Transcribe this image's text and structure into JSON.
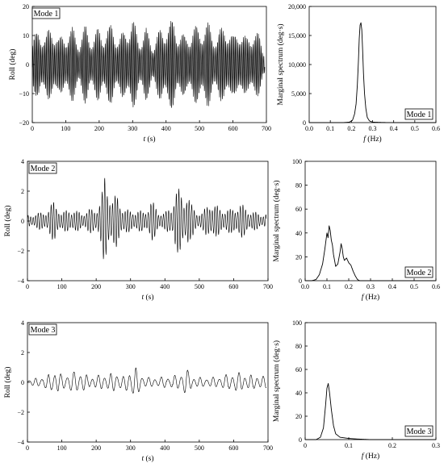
{
  "chart_data": [
    {
      "type": "line",
      "mode_label": "Mode 1",
      "xlabel_var": "t",
      "xlabel_unit": " (s)",
      "ylabel": "Roll (deg)",
      "xlim": [
        0,
        700
      ],
      "ylim": [
        -20,
        20
      ],
      "xticks": [
        0,
        100,
        200,
        300,
        400,
        500,
        600,
        700
      ],
      "yticks": [
        -20,
        -10,
        0,
        10,
        20
      ],
      "yticklabels": [
        "−20",
        "−10",
        "0",
        "10",
        "20"
      ],
      "series": [
        {
          "freq_hz": 0.245,
          "envelope_x": [
            0,
            20,
            40,
            60,
            80,
            100,
            120,
            140,
            160,
            180,
            200,
            220,
            240,
            260,
            280,
            300,
            320,
            340,
            360,
            380,
            400,
            420,
            440,
            460,
            480,
            500,
            520,
            540,
            560,
            580,
            600,
            620,
            640,
            660,
            680,
            690
          ],
          "envelope_y": [
            8,
            14,
            10,
            15,
            9,
            12,
            13,
            9,
            14,
            10,
            13,
            12,
            15,
            9,
            14,
            16,
            10,
            13,
            8,
            12,
            15,
            16,
            12,
            10,
            14,
            13,
            16,
            11,
            12,
            15,
            10,
            14,
            9,
            13,
            10,
            6
          ]
        }
      ]
    },
    {
      "type": "line",
      "mode_label": "Mode 1",
      "xlabel_var": "f",
      "xlabel_unit": " (Hz)",
      "ylabel": "Marginal spectrum (deg·s)",
      "xlim": [
        0,
        0.6
      ],
      "ylim": [
        0,
        20000
      ],
      "xticks": [
        0.0,
        0.1,
        0.2,
        0.3,
        0.4,
        0.5,
        0.6
      ],
      "xticklabels": [
        "0.0",
        "0.1",
        "0.2",
        "0.3",
        "0.4",
        "0.5",
        "0.6"
      ],
      "yticks": [
        0,
        5000,
        10000,
        15000,
        20000
      ],
      "yticklabels": [
        "0",
        "5,000",
        "10,000",
        "15,000",
        "20,000"
      ],
      "series": [
        {
          "x": [
            0,
            0.16,
            0.19,
            0.205,
            0.215,
            0.222,
            0.228,
            0.233,
            0.237,
            0.241,
            0.245,
            0.249,
            0.253,
            0.257,
            0.262,
            0.268,
            0.275,
            0.285,
            0.3,
            0.35,
            0.4,
            0.6
          ],
          "y": [
            0,
            0,
            80,
            400,
            1500,
            3200,
            6500,
            10500,
            14500,
            16800,
            17200,
            16000,
            12500,
            8500,
            5000,
            2500,
            900,
            300,
            80,
            20,
            0,
            0
          ]
        }
      ]
    },
    {
      "type": "line",
      "mode_label": "Mode 2",
      "xlabel_var": "t",
      "xlabel_unit": " (s)",
      "ylabel": "Roll (deg)",
      "xlim": [
        0,
        700
      ],
      "ylim": [
        -4,
        4
      ],
      "xticks": [
        0,
        100,
        200,
        300,
        400,
        500,
        600,
        700
      ],
      "yticks": [
        -4,
        -2,
        0,
        2,
        4
      ],
      "yticklabels": [
        "−4",
        "−2",
        "0",
        "2",
        "4"
      ],
      "series": [
        {
          "freq_hz": 0.135,
          "envelope_x": [
            0,
            20,
            40,
            60,
            80,
            100,
            120,
            140,
            160,
            180,
            200,
            215,
            225,
            235,
            245,
            260,
            280,
            300,
            320,
            340,
            360,
            380,
            400,
            420,
            430,
            440,
            455,
            465,
            475,
            490,
            510,
            530,
            560,
            590,
            620,
            650,
            680,
            690
          ],
          "envelope_y": [
            0.4,
            0.5,
            0.6,
            0.8,
            1.5,
            0.5,
            0.9,
            0.7,
            0.6,
            0.8,
            0.9,
            1.6,
            3.2,
            2.6,
            1.5,
            1.8,
            0.9,
            0.7,
            0.8,
            0.6,
            1.5,
            0.7,
            0.6,
            1.0,
            2.4,
            2.2,
            1.5,
            2.4,
            1.2,
            0.7,
            0.6,
            1.4,
            0.9,
            0.8,
            1.2,
            0.7,
            0.5,
            0.5
          ]
        }
      ]
    },
    {
      "type": "line",
      "mode_label": "Mode 2",
      "xlabel_var": "f",
      "xlabel_unit": " (Hz)",
      "ylabel": "Marginal spectrum (deg·s)",
      "xlim": [
        0,
        0.6
      ],
      "ylim": [
        0,
        100
      ],
      "xticks": [
        0.0,
        0.1,
        0.2,
        0.3,
        0.4,
        0.5,
        0.6
      ],
      "xticklabels": [
        "0.0",
        "0.1",
        "0.2",
        "0.3",
        "0.4",
        "0.5",
        "0.6"
      ],
      "yticks": [
        0,
        20,
        40,
        60,
        80,
        100
      ],
      "yticklabels": [
        "0",
        "20",
        "40",
        "60",
        "80",
        "100"
      ],
      "series": [
        {
          "x": [
            0,
            0.03,
            0.05,
            0.065,
            0.08,
            0.09,
            0.1,
            0.105,
            0.11,
            0.115,
            0.12,
            0.125,
            0.13,
            0.14,
            0.15,
            0.16,
            0.165,
            0.17,
            0.175,
            0.18,
            0.19,
            0.2,
            0.21,
            0.22,
            0.23,
            0.24,
            0.25,
            0.3,
            0.6
          ],
          "y": [
            0,
            0,
            1,
            5,
            14,
            26,
            40,
            36,
            46,
            42,
            34,
            30,
            22,
            12,
            14,
            24,
            31,
            27,
            20,
            17,
            19,
            15,
            13,
            8,
            4,
            1,
            0,
            0,
            0
          ]
        }
      ]
    },
    {
      "type": "line",
      "mode_label": "Mode 3",
      "xlabel_var": "t",
      "xlabel_unit": " (s)",
      "ylabel": "Roll (deg)",
      "xlim": [
        0,
        700
      ],
      "ylim": [
        -4,
        4
      ],
      "xticks": [
        0,
        100,
        200,
        300,
        400,
        500,
        600,
        700
      ],
      "yticks": [
        -4,
        -2,
        0,
        2,
        4
      ],
      "yticklabels": [
        "−4",
        "−2",
        "0",
        "2",
        "4"
      ],
      "series": [
        {
          "freq_hz": 0.055,
          "envelope_x": [
            0,
            30,
            60,
            80,
            100,
            120,
            150,
            180,
            210,
            240,
            260,
            280,
            310,
            330,
            360,
            400,
            440,
            460,
            480,
            520,
            560,
            590,
            610,
            640,
            670,
            690
          ],
          "envelope_y": [
            0.2,
            0.3,
            0.5,
            0.9,
            0.5,
            0.6,
            0.8,
            0.4,
            0.5,
            0.6,
            0.7,
            0.4,
            1.2,
            0.5,
            0.3,
            0.4,
            0.5,
            1.0,
            0.4,
            0.3,
            0.4,
            0.6,
            0.7,
            0.5,
            0.5,
            0.4
          ]
        }
      ]
    },
    {
      "type": "line",
      "mode_label": "Mode 3",
      "xlabel_var": "f",
      "xlabel_unit": " (Hz)",
      "ylabel": "Marginal spectrum (deg·s)",
      "xlim": [
        0,
        0.3
      ],
      "ylim": [
        0,
        100
      ],
      "xticks": [
        0.0,
        0.1,
        0.2,
        0.3
      ],
      "xticklabels": [
        "0",
        "0.1",
        "0.2",
        "0.3"
      ],
      "yticks": [
        0,
        20,
        40,
        60,
        80,
        100
      ],
      "yticklabels": [
        "0",
        "20",
        "40",
        "60",
        "80",
        "100"
      ],
      "series": [
        {
          "x": [
            0,
            0.025,
            0.035,
            0.042,
            0.047,
            0.05,
            0.053,
            0.056,
            0.06,
            0.065,
            0.07,
            0.08,
            0.1,
            0.12,
            0.15,
            0.3
          ],
          "y": [
            0,
            0,
            2,
            10,
            30,
            44,
            48,
            40,
            26,
            12,
            5,
            2,
            1,
            0.5,
            0,
            0
          ]
        }
      ]
    }
  ]
}
